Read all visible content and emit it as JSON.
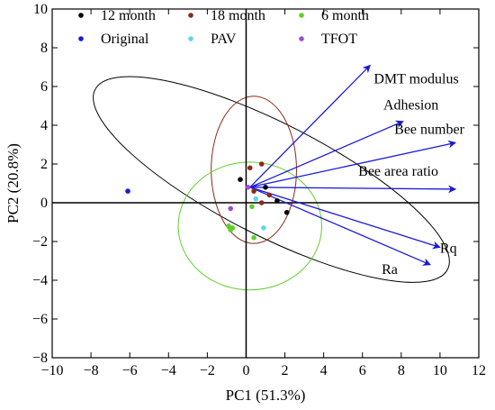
{
  "chart_data": {
    "type": "scatter",
    "title": "",
    "xlabel": "PC1 (51.3%)",
    "ylabel": "PC2 (20.8%)",
    "xlim": [
      -10,
      12
    ],
    "ylim": [
      -8,
      10
    ],
    "xticks": [
      -10,
      -8,
      -6,
      -4,
      -2,
      0,
      2,
      4,
      6,
      8,
      10,
      12
    ],
    "yticks": [
      -8,
      -6,
      -4,
      -2,
      0,
      2,
      4,
      6,
      8,
      10
    ],
    "legend_position": "top",
    "series": [
      {
        "name": "12 month",
        "color": "#000000",
        "points": [
          [
            -0.3,
            1.2
          ],
          [
            1.0,
            0.8
          ],
          [
            1.6,
            0.1
          ],
          [
            2.1,
            -0.5
          ]
        ]
      },
      {
        "name": "18 month",
        "color": "#8b2a1a",
        "points": [
          [
            0.2,
            1.8
          ],
          [
            0.8,
            2.0
          ],
          [
            0.4,
            0.6
          ],
          [
            1.2,
            0.4
          ],
          [
            0.8,
            0.0
          ]
        ]
      },
      {
        "name": "6 month",
        "color": "#5fcf2a",
        "points": [
          [
            -0.9,
            -1.2
          ],
          [
            -0.8,
            -1.4
          ],
          [
            -0.7,
            -1.3
          ],
          [
            0.4,
            -1.8
          ],
          [
            0.3,
            -0.2
          ]
        ]
      },
      {
        "name": "Original",
        "color": "#1a1ad6",
        "points": [
          [
            -6.1,
            0.6
          ]
        ]
      },
      {
        "name": "PAV",
        "color": "#5fd6ee",
        "points": [
          [
            0.9,
            -1.3
          ],
          [
            0.5,
            0.2
          ]
        ]
      },
      {
        "name": "TFOT",
        "color": "#9a4ed6",
        "points": [
          [
            -0.8,
            -0.3
          ],
          [
            0.1,
            0.8
          ]
        ]
      }
    ],
    "vectors": [
      {
        "label": "DMT modulus",
        "end": [
          6.4,
          7.1
        ]
      },
      {
        "label": "Adhesion",
        "end": [
          8.1,
          4.2
        ]
      },
      {
        "label": "Bee number",
        "end": [
          10.8,
          3.1
        ]
      },
      {
        "label": "Bee area ratio",
        "end": [
          10.8,
          0.7
        ]
      },
      {
        "label": "Rq",
        "end": [
          10.0,
          -2.3
        ]
      },
      {
        "label": "Ra",
        "end": [
          9.5,
          -3.2
        ]
      }
    ],
    "vector_color": "#1a1ad6",
    "ellipse_colors": [
      "#000000",
      "#8b2a1a",
      "#5fcf2a"
    ],
    "crosshair": {
      "x": 0,
      "y": 0
    }
  }
}
